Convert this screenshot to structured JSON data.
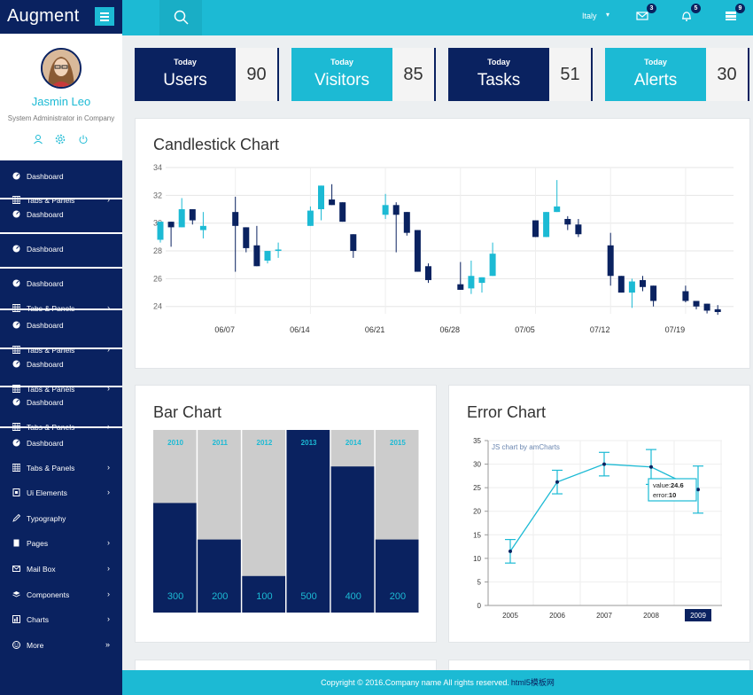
{
  "brand": {
    "title": "Augment"
  },
  "profile": {
    "name": "Jasmin Leo",
    "role": "System Administrator in Company"
  },
  "sidebar_items": [
    {
      "label": "Dashboard",
      "icon": "dashboard-icon",
      "arrow": ""
    },
    {
      "label": "Tabs & Panels",
      "icon": "table-icon",
      "arrow": "›"
    },
    {
      "label": "Dashboard",
      "icon": "dashboard-icon",
      "arrow": ""
    },
    {
      "label": "Dashboard",
      "icon": "dashboard-icon",
      "arrow": ""
    },
    {
      "label": "Dashboard",
      "icon": "dashboard-icon",
      "arrow": ""
    },
    {
      "label": "Tabs & Panels",
      "icon": "table-icon",
      "arrow": "›"
    },
    {
      "label": "Dashboard",
      "icon": "dashboard-icon",
      "arrow": ""
    },
    {
      "label": "Tabs & Panels",
      "icon": "table-icon",
      "arrow": "›"
    },
    {
      "label": "Dashboard",
      "icon": "dashboard-icon",
      "arrow": ""
    },
    {
      "label": "Tabs & Panels",
      "icon": "table-icon",
      "arrow": "›"
    },
    {
      "label": "Dashboard",
      "icon": "dashboard-icon",
      "arrow": ""
    },
    {
      "label": "Tabs & Panels",
      "icon": "table-icon",
      "arrow": "›"
    },
    {
      "label": "Dashboard",
      "icon": "dashboard-icon",
      "arrow": ""
    },
    {
      "label": "Tabs & Panels",
      "icon": "table-icon",
      "arrow": "›"
    },
    {
      "label": "Ui Elements",
      "icon": "ui-elements-icon",
      "arrow": "›"
    },
    {
      "label": "Typography",
      "icon": "pencil-icon",
      "arrow": ""
    },
    {
      "label": "Pages",
      "icon": "pages-icon",
      "arrow": "›"
    },
    {
      "label": "Mail Box",
      "icon": "mail-icon",
      "arrow": "›"
    },
    {
      "label": "Components",
      "icon": "layers-icon",
      "arrow": "›"
    },
    {
      "label": "Charts",
      "icon": "chart-icon",
      "arrow": "›"
    },
    {
      "label": "More",
      "icon": "smile-icon",
      "arrow": "»"
    }
  ],
  "topbar": {
    "language": "Italy",
    "mail_badge": "3",
    "bell_badge": "5",
    "tasks_badge": "9"
  },
  "stats": [
    {
      "today": "Today",
      "label": "Users",
      "value": "90",
      "color": "#0a2260"
    },
    {
      "today": "Today",
      "label": "Visitors",
      "value": "85",
      "color": "#1cbad4"
    },
    {
      "today": "Today",
      "label": "Tasks",
      "value": "51",
      "color": "#0a2260"
    },
    {
      "today": "Today",
      "label": "Alerts",
      "value": "30",
      "color": "#1cbad4"
    }
  ],
  "panels": {
    "candlestick_title": "Candlestick Chart",
    "bar_title": "Bar Chart",
    "error_title": "Error Chart"
  },
  "footer": {
    "text": "Copyright © 2016.Company name All rights reserved.",
    "link": "html5模板网"
  },
  "colors": {
    "navy": "#0a2260",
    "cyan": "#1cbad4",
    "gray": "#cccccc"
  },
  "chart_data": [
    {
      "type": "candlestick",
      "title": "Candlestick Chart",
      "x_ticks": [
        "06/07",
        "06/14",
        "06/21",
        "06/28",
        "07/05",
        "07/12",
        "07/19"
      ],
      "y_ticks": [
        34,
        32,
        30,
        28,
        26,
        24
      ],
      "ylim": [
        23.6,
        34
      ],
      "grid": true,
      "candles": [
        {
          "d": 1,
          "o": 28.8,
          "c": 30.1,
          "h": 30.1,
          "l": 28.6
        },
        {
          "d": 2,
          "o": 30.1,
          "c": 29.7,
          "h": 30.1,
          "l": 28.3
        },
        {
          "d": 3,
          "o": 29.7,
          "c": 31.0,
          "h": 31.8,
          "l": 29.7
        },
        {
          "d": 4,
          "o": 31.0,
          "c": 30.2,
          "h": 31.0,
          "l": 29.9
        },
        {
          "d": 5,
          "o": 29.5,
          "c": 29.8,
          "h": 30.8,
          "l": 28.9
        },
        {
          "d": 8,
          "o": 30.8,
          "c": 29.8,
          "h": 31.9,
          "l": 26.5
        },
        {
          "d": 9,
          "o": 29.7,
          "c": 28.2,
          "h": 29.7,
          "l": 27.9
        },
        {
          "d": 10,
          "o": 28.4,
          "c": 26.9,
          "h": 29.8,
          "l": 26.9
        },
        {
          "d": 11,
          "o": 27.3,
          "c": 28.0,
          "h": 28.0,
          "l": 27.1
        },
        {
          "d": 12,
          "o": 28.0,
          "c": 28.1,
          "h": 28.6,
          "l": 27.5
        },
        {
          "d": 15,
          "o": 29.8,
          "c": 30.9,
          "h": 31.2,
          "l": 29.8
        },
        {
          "d": 16,
          "o": 31.0,
          "c": 32.7,
          "h": 32.7,
          "l": 30.2
        },
        {
          "d": 17,
          "o": 31.7,
          "c": 31.3,
          "h": 32.8,
          "l": 31.3
        },
        {
          "d": 18,
          "o": 31.5,
          "c": 30.1,
          "h": 31.5,
          "l": 30.1
        },
        {
          "d": 19,
          "o": 29.2,
          "c": 28.0,
          "h": 29.2,
          "l": 27.5
        },
        {
          "d": 22,
          "o": 30.6,
          "c": 31.3,
          "h": 32.1,
          "l": 30.3
        },
        {
          "d": 23,
          "o": 31.3,
          "c": 30.6,
          "h": 31.5,
          "l": 27.9
        },
        {
          "d": 24,
          "o": 30.8,
          "c": 29.3,
          "h": 30.8,
          "l": 29.1
        },
        {
          "d": 25,
          "o": 29.5,
          "c": 26.5,
          "h": 29.5,
          "l": 26.5
        },
        {
          "d": 26,
          "o": 26.9,
          "c": 25.9,
          "h": 27.1,
          "l": 25.7
        },
        {
          "d": 29,
          "o": 25.6,
          "c": 25.2,
          "h": 27.2,
          "l": 25.2
        },
        {
          "d": 30,
          "o": 25.3,
          "c": 26.2,
          "h": 27.3,
          "l": 24.9
        },
        {
          "d": 31,
          "o": 25.7,
          "c": 26.1,
          "h": 26.1,
          "l": 25.0
        },
        {
          "d": 32,
          "o": 26.2,
          "c": 27.8,
          "h": 28.6,
          "l": 26.2
        },
        {
          "d": 36,
          "o": 30.2,
          "c": 29.0,
          "h": 30.2,
          "l": 29.0
        },
        {
          "d": 37,
          "o": 29.0,
          "c": 30.8,
          "h": 30.8,
          "l": 29.0
        },
        {
          "d": 38,
          "o": 30.8,
          "c": 31.2,
          "h": 33.1,
          "l": 30.8
        },
        {
          "d": 39,
          "o": 30.3,
          "c": 29.9,
          "h": 30.5,
          "l": 29.5
        },
        {
          "d": 40,
          "o": 29.9,
          "c": 29.2,
          "h": 30.3,
          "l": 29.0
        },
        {
          "d": 43,
          "o": 28.4,
          "c": 26.2,
          "h": 29.3,
          "l": 25.5
        },
        {
          "d": 44,
          "o": 26.2,
          "c": 25.0,
          "h": 26.2,
          "l": 25.0
        },
        {
          "d": 45,
          "o": 25.0,
          "c": 25.8,
          "h": 26.0,
          "l": 23.9
        },
        {
          "d": 46,
          "o": 25.9,
          "c": 25.4,
          "h": 26.2,
          "l": 25.1
        },
        {
          "d": 47,
          "o": 25.5,
          "c": 24.4,
          "h": 25.5,
          "l": 24.0
        },
        {
          "d": 50,
          "o": 25.1,
          "c": 24.4,
          "h": 25.5,
          "l": 24.3
        },
        {
          "d": 51,
          "o": 24.4,
          "c": 24.0,
          "h": 24.4,
          "l": 23.8
        },
        {
          "d": 52,
          "o": 24.2,
          "c": 23.7,
          "h": 24.2,
          "l": 23.5
        },
        {
          "d": 53,
          "o": 23.8,
          "c": 23.6,
          "h": 24.1,
          "l": 23.4
        }
      ]
    },
    {
      "type": "bar",
      "title": "Bar Chart",
      "categories": [
        "2010",
        "2011",
        "2012",
        "2013",
        "2014",
        "2015"
      ],
      "values": [
        300,
        200,
        100,
        500,
        400,
        200
      ],
      "ylim": [
        0,
        500
      ]
    },
    {
      "type": "line",
      "title": "Error Chart",
      "credit": "JS chart by amCharts",
      "x": [
        "2005",
        "2006",
        "2007",
        "2008",
        "2009"
      ],
      "y": [
        11.5,
        26.2,
        30,
        29.4,
        24.6
      ],
      "error": [
        2.5,
        2.5,
        2.5,
        3.7,
        5
      ],
      "y_ticks": [
        35,
        30,
        25,
        20,
        15,
        10,
        5,
        0
      ],
      "ylim": [
        0,
        35
      ],
      "tooltip": {
        "value_label": "value:",
        "value": "24.6",
        "error_label": "error:",
        "error": "10"
      },
      "highlighted_x": "2009"
    }
  ]
}
